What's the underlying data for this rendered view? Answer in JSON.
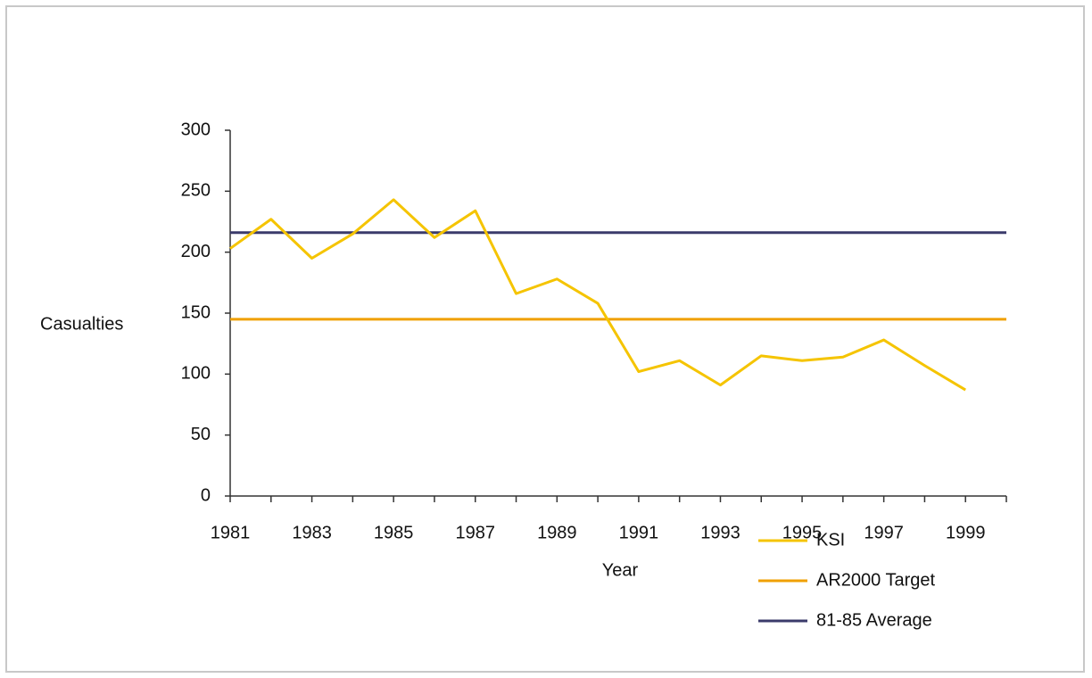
{
  "chart_data": {
    "type": "line",
    "ylabel": "Casualties",
    "xlabel": "Year",
    "xlim": [
      1981,
      2000
    ],
    "ylim": [
      0,
      300
    ],
    "xticks": [
      1981,
      1983,
      1985,
      1987,
      1989,
      1991,
      1993,
      1995,
      1997,
      1999
    ],
    "xminor_ticks": [
      1982,
      1984,
      1986,
      1988,
      1990,
      1992,
      1994,
      1996,
      1998,
      2000
    ],
    "yticks": [
      0,
      50,
      100,
      150,
      200,
      250,
      300
    ],
    "legend": "lower right",
    "series": [
      {
        "name": "KSI",
        "color": "#f5c400",
        "x": [
          1981,
          1982,
          1983,
          1984,
          1985,
          1986,
          1987,
          1988,
          1989,
          1990,
          1991,
          1992,
          1993,
          1994,
          1995,
          1996,
          1997,
          1998,
          1999
        ],
        "values": [
          203,
          227,
          195,
          215,
          243,
          212,
          234,
          166,
          178,
          158,
          102,
          111,
          91,
          115,
          111,
          114,
          128,
          107,
          87
        ]
      },
      {
        "name": "AR2000 Target",
        "color": "#f0a000",
        "x": [
          1981,
          2000
        ],
        "values": [
          145,
          145
        ]
      },
      {
        "name": "81-85 Average",
        "color": "#3b3b6b",
        "x": [
          1981,
          2000
        ],
        "values": [
          216,
          216
        ]
      }
    ]
  }
}
